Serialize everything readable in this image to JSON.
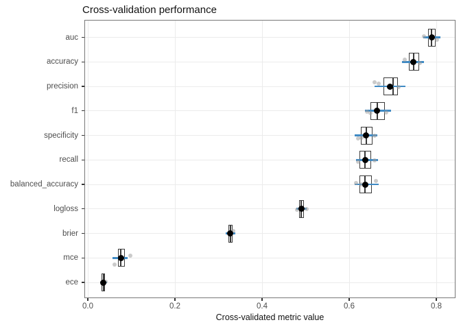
{
  "chart_data": {
    "type": "boxplot",
    "orientation": "horizontal",
    "title": "Cross-validation performance",
    "xlabel": "Cross-validated metric value",
    "ylabel": "",
    "xlim": [
      -0.008,
      0.844
    ],
    "xticks": [
      0.0,
      0.2,
      0.4,
      0.6,
      0.8
    ],
    "xticklabels": [
      "0.0",
      "0.2",
      "0.4",
      "0.6",
      "0.8"
    ],
    "grid": "major-only",
    "legend": "none",
    "categories_top_to_bottom": [
      "auc",
      "accuracy",
      "precision",
      "f1",
      "specificity",
      "recall",
      "balanced_accuracy",
      "logloss",
      "brier",
      "mce",
      "ece"
    ],
    "metrics": [
      {
        "name": "auc",
        "q1": 0.781,
        "median": 0.789,
        "q3": 0.798,
        "mean": 0.789,
        "bar_lo": 0.77,
        "bar_hi": 0.809,
        "points": [
          [
            0.771,
            -2
          ],
          [
            0.801,
            3
          ]
        ]
      },
      {
        "name": "accuracy",
        "q1": 0.737,
        "median": 0.748,
        "q3": 0.76,
        "mean": 0.748,
        "bar_lo": 0.722,
        "bar_hi": 0.772,
        "points": [
          [
            0.727,
            -3
          ],
          [
            0.762,
            2
          ]
        ]
      },
      {
        "name": "precision",
        "q1": 0.679,
        "median": 0.7,
        "q3": 0.712,
        "mean": 0.694,
        "bar_lo": 0.658,
        "bar_hi": 0.729,
        "points": [
          [
            0.659,
            -6
          ],
          [
            0.667,
            -4
          ],
          [
            0.714,
            1
          ]
        ]
      },
      {
        "name": "f1",
        "q1": 0.649,
        "median": 0.664,
        "q3": 0.682,
        "mean": 0.664,
        "bar_lo": 0.636,
        "bar_hi": 0.696,
        "points": [
          [
            0.641,
            1
          ],
          [
            0.649,
            3
          ],
          [
            0.685,
            2
          ]
        ]
      },
      {
        "name": "specificity",
        "q1": 0.627,
        "median": 0.639,
        "q3": 0.653,
        "mean": 0.639,
        "bar_lo": 0.613,
        "bar_hi": 0.665,
        "points": [
          [
            0.62,
            4
          ],
          [
            0.628,
            3
          ],
          [
            0.659,
            0
          ]
        ]
      },
      {
        "name": "recall",
        "q1": 0.624,
        "median": 0.637,
        "q3": 0.65,
        "mean": 0.637,
        "bar_lo": 0.615,
        "bar_hi": 0.666,
        "points": [
          [
            0.621,
            3
          ],
          [
            0.658,
            1
          ]
        ]
      },
      {
        "name": "balanced_accuracy",
        "q1": 0.624,
        "median": 0.637,
        "q3": 0.652,
        "mean": 0.637,
        "bar_lo": 0.612,
        "bar_hi": 0.667,
        "points": [
          [
            0.615,
            -2
          ],
          [
            0.628,
            0
          ],
          [
            0.662,
            -5
          ]
        ]
      },
      {
        "name": "logloss",
        "q1": 0.485,
        "median": 0.49,
        "q3": 0.496,
        "mean": 0.49,
        "bar_lo": 0.478,
        "bar_hi": 0.503,
        "points": [
          [
            0.48,
            1
          ],
          [
            0.503,
            0
          ]
        ]
      },
      {
        "name": "brier",
        "q1": 0.323,
        "median": 0.327,
        "q3": 0.332,
        "mean": 0.327,
        "bar_lo": 0.316,
        "bar_hi": 0.339,
        "points": [
          [
            0.334,
            -4
          ]
        ]
      },
      {
        "name": "mce",
        "q1": 0.069,
        "median": 0.076,
        "q3": 0.085,
        "mean": 0.076,
        "bar_lo": 0.056,
        "bar_hi": 0.092,
        "points": [
          [
            0.097,
            -3
          ],
          [
            0.061,
            10
          ]
        ]
      },
      {
        "name": "ece",
        "q1": 0.032,
        "median": 0.036,
        "q3": 0.04,
        "mean": 0.036,
        "bar_lo": 0.028,
        "bar_hi": 0.044,
        "points": [
          [
            0.041,
            -1
          ]
        ]
      }
    ],
    "colors": {
      "crossbar_blue": "#3f8ac4",
      "box_border": "#3a3a3a",
      "median_line": "#3a3a3a",
      "mean_dot": "#000000",
      "jitter_point": "#9e9e9e",
      "gridline": "#ebebeb",
      "panel_border": "#777777",
      "tick_label": "#4d4d4d",
      "background": "#ffffff"
    }
  }
}
